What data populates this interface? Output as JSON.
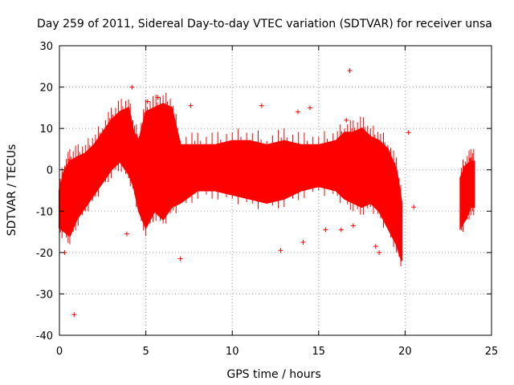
{
  "chart_data": {
    "type": "scatter",
    "title": "Day 259 of 2011, Sidereal Day-to-day VTEC variation (SDTVAR) for receiver unsa",
    "xlabel": "GPS time / hours",
    "ylabel": "SDTVAR / TECUs",
    "xlim": [
      0,
      25
    ],
    "ylim": [
      -40,
      30
    ],
    "xticks": [
      0,
      5,
      10,
      15,
      20,
      25
    ],
    "yticks": [
      -40,
      -30,
      -20,
      -10,
      0,
      10,
      20,
      30
    ],
    "xtick_labels": [
      "0",
      "5",
      "10",
      "15",
      "20",
      "25"
    ],
    "ytick_labels": [
      "-40",
      "-30",
      "-20",
      "-10",
      "0",
      "10",
      "20",
      "30"
    ],
    "grid": true,
    "marker": "+",
    "color": "#ff0000",
    "series": [
      {
        "name": "SDTVAR",
        "envelope": {
          "x": [
            0.0,
            0.3,
            0.6,
            1.0,
            1.5,
            2.0,
            2.5,
            3.0,
            3.5,
            4.0,
            4.3,
            4.6,
            5.0,
            5.5,
            6.0,
            6.5,
            7.0,
            8.0,
            9.0,
            10.0,
            11.0,
            12.0,
            13.0,
            14.0,
            15.0,
            16.0,
            16.5,
            17.0,
            17.5,
            18.0,
            18.5,
            19.0,
            19.5,
            19.8
          ],
          "upper": [
            -5,
            0,
            2,
            3,
            4,
            6,
            9,
            12,
            14,
            15,
            9,
            7,
            14,
            15,
            16,
            15,
            6,
            6,
            6,
            7,
            7,
            6,
            7,
            6,
            6,
            7,
            9,
            9,
            10,
            8,
            7,
            5,
            0,
            -8
          ],
          "lower": [
            -14,
            -15,
            -16,
            -12,
            -9,
            -6,
            -3,
            0,
            2,
            -1,
            -4,
            -10,
            -14,
            -10,
            -12,
            -9,
            -8,
            -5,
            -5,
            -6,
            -7,
            -8,
            -7,
            -5,
            -4,
            -5,
            -7,
            -8,
            -9,
            -8,
            -10,
            -14,
            -18,
            -22
          ]
        },
        "envelope2": {
          "x": [
            23.2,
            23.5,
            23.8,
            24.0
          ],
          "upper": [
            -2,
            1,
            2,
            2
          ],
          "lower": [
            -14,
            -12,
            -9,
            -9
          ]
        },
        "points": [
          {
            "x": 0.85,
            "y": -35
          },
          {
            "x": 16.8,
            "y": 24
          },
          {
            "x": 7.0,
            "y": -21.5
          },
          {
            "x": 3.9,
            "y": -15.5
          },
          {
            "x": 0.3,
            "y": -20
          },
          {
            "x": 12.8,
            "y": -19.5
          },
          {
            "x": 14.1,
            "y": -17.5
          },
          {
            "x": 15.4,
            "y": -14.5
          },
          {
            "x": 16.3,
            "y": -14.5
          },
          {
            "x": 17.0,
            "y": -13.5
          },
          {
            "x": 18.3,
            "y": -18.5
          },
          {
            "x": 18.5,
            "y": -20
          },
          {
            "x": 20.5,
            "y": -9
          },
          {
            "x": 20.2,
            "y": 9
          },
          {
            "x": 4.2,
            "y": 20
          },
          {
            "x": 5.7,
            "y": 17.5
          },
          {
            "x": 5.1,
            "y": 16.5
          },
          {
            "x": 7.6,
            "y": 15.5
          },
          {
            "x": 11.7,
            "y": 15.5
          },
          {
            "x": 14.5,
            "y": 15
          },
          {
            "x": 16.6,
            "y": 12
          },
          {
            "x": 13.8,
            "y": 14
          }
        ]
      }
    ]
  }
}
